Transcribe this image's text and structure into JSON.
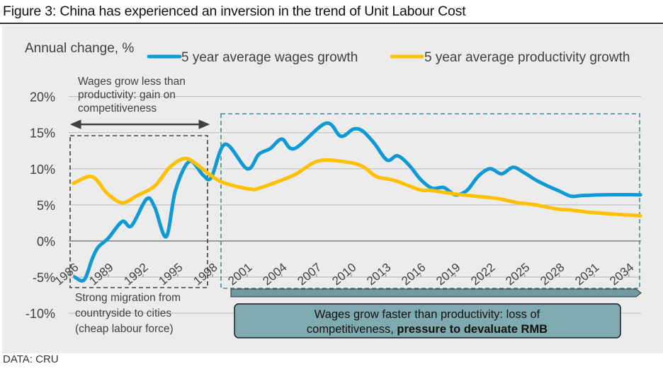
{
  "figure": {
    "title": "Figure 3: China has experienced an inversion in the trend of Unit Labour Cost",
    "source": "DATA: CRU"
  },
  "chart_data": {
    "type": "line",
    "title": "Figure 3: China has experienced an inversion in the trend of Unit Labour Cost",
    "ylabel": "Annual change, %",
    "xlabel": "",
    "ylim": [
      -10,
      20
    ],
    "xlim": [
      1986,
      2035
    ],
    "yticks": [
      20,
      15,
      10,
      5,
      0,
      -5,
      -10
    ],
    "ytick_labels": [
      "20%",
      "15%",
      "10%",
      "5%",
      "0%",
      "-5%",
      "-10%"
    ],
    "xtick_labels": [
      "1986",
      "1989",
      "1992",
      "1995",
      "1998",
      "2001",
      "2004",
      "2007",
      "2010",
      "2013",
      "2016",
      "2019",
      "2022",
      "2025",
      "2028",
      "2031",
      "2034"
    ],
    "grid": true,
    "legend_position": "top",
    "series": [
      {
        "name": "5 year average wages growth",
        "color": "#0f9ad6",
        "points": [
          [
            1986.1,
            -5.0
          ],
          [
            1986.9,
            -5.4
          ],
          [
            1987.6,
            -2.5
          ],
          [
            1988.1,
            -0.9
          ],
          [
            1989,
            0.4
          ],
          [
            1990.2,
            2.7
          ],
          [
            1991,
            2.1
          ],
          [
            1992.3,
            5.8
          ],
          [
            1993,
            4.7
          ],
          [
            1994,
            0.6
          ],
          [
            1994.8,
            7.0
          ],
          [
            1996,
            11.0
          ],
          [
            1997.2,
            9.1
          ],
          [
            1997.9,
            8.8
          ],
          [
            1999.1,
            13.4
          ],
          [
            2001,
            10.0
          ],
          [
            2002,
            12.0
          ],
          [
            2003,
            12.8
          ],
          [
            2004,
            14.1
          ],
          [
            2005.1,
            12.8
          ],
          [
            2007.8,
            16.3
          ],
          [
            2009.1,
            14.5
          ],
          [
            2010.2,
            15.5
          ],
          [
            2011,
            15.2
          ],
          [
            2012,
            13.5
          ],
          [
            2013.1,
            11.2
          ],
          [
            2014,
            11.8
          ],
          [
            2015,
            10.5
          ],
          [
            2016,
            8.5
          ],
          [
            2017,
            7.3
          ],
          [
            2018,
            7.4
          ],
          [
            2019,
            6.4
          ],
          [
            2020,
            7.0
          ],
          [
            2021,
            9.0
          ],
          [
            2022,
            10.0
          ],
          [
            2023,
            9.3
          ],
          [
            2024,
            10.2
          ],
          [
            2025,
            9.4
          ],
          [
            2026,
            8.4
          ],
          [
            2027,
            7.6
          ],
          [
            2028,
            6.9
          ],
          [
            2029,
            6.2
          ],
          [
            2030,
            6.3
          ],
          [
            2032,
            6.4
          ],
          [
            2035,
            6.4
          ]
        ]
      },
      {
        "name": "5 year average productivity growth",
        "color": "#ffc000",
        "points": [
          [
            1986,
            8.0
          ],
          [
            1987.6,
            8.9
          ],
          [
            1988.9,
            6.6
          ],
          [
            1990.2,
            5.3
          ],
          [
            1991.5,
            6.3
          ],
          [
            1993,
            7.6
          ],
          [
            1994.3,
            10.2
          ],
          [
            1995.5,
            11.4
          ],
          [
            1996.3,
            11.0
          ],
          [
            1997.6,
            9.4
          ],
          [
            1998.9,
            8.1
          ],
          [
            2001.2,
            7.2
          ],
          [
            2002.2,
            7.4
          ],
          [
            2005,
            9.1
          ],
          [
            2007.2,
            11.1
          ],
          [
            2009.7,
            10.9
          ],
          [
            2011,
            10.3
          ],
          [
            2012.2,
            8.9
          ],
          [
            2013.7,
            8.4
          ],
          [
            2015.9,
            7.1
          ],
          [
            2016.9,
            7.0
          ],
          [
            2019,
            6.5
          ],
          [
            2022,
            6.0
          ],
          [
            2022.9,
            5.8
          ],
          [
            2024.4,
            5.3
          ],
          [
            2025.9,
            5.0
          ],
          [
            2027.9,
            4.4
          ],
          [
            2028.9,
            4.3
          ],
          [
            2030.4,
            4.0
          ],
          [
            2032.9,
            3.7
          ],
          [
            2035,
            3.5
          ]
        ]
      }
    ],
    "annotations": {
      "left_top": [
        "Wages grow less than",
        "productivity: gain on",
        "competitiveness"
      ],
      "left_bottom": [
        "Strong migration from",
        "countryside to cities",
        "(cheap labour force)"
      ],
      "right_box_line1": "Wages grow faster than productivity: loss of",
      "right_box_line2_normal": "competitiveness, ",
      "right_box_line2_bold": "pressure to devaluate RMB"
    },
    "colors": {
      "grid": "#c0c0c0",
      "zero": "#7f7f7f",
      "left_box": "#404040",
      "right_box": "#4a8a92",
      "callout_fill": "#7eaab0",
      "arrow_fill": "#6e9aa0"
    }
  }
}
